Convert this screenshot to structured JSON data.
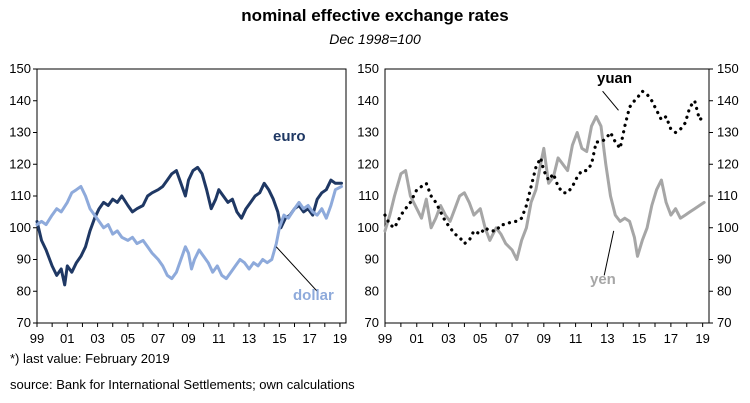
{
  "title": "nominal effective exchange rates",
  "subtitle": "Dec 1998=100",
  "footnote": "*) last value: February 2019",
  "source": "source: Bank for International Settlements; own calculations",
  "colors": {
    "euro": "#1f3864",
    "dollar": "#8eaadb",
    "yen": "#a6a6a6",
    "yuan": "#000000",
    "axis": "#000000"
  },
  "chart_data": [
    {
      "type": "line",
      "ylim": [
        70,
        150
      ],
      "yticks": [
        70,
        80,
        90,
        100,
        110,
        120,
        130,
        140,
        150
      ],
      "xlim": [
        1999,
        2019.4
      ],
      "xtick_labels": [
        "99",
        "01",
        "03",
        "05",
        "07",
        "09",
        "11",
        "13",
        "15",
        "17",
        "19"
      ],
      "series": [
        {
          "name": "euro",
          "style": "solid",
          "x": [
            1999.0,
            1999.3,
            1999.6,
            2000.0,
            2000.3,
            2000.6,
            2000.83,
            2001.0,
            2001.3,
            2001.6,
            2001.9,
            2002.2,
            2002.5,
            2002.8,
            2003.1,
            2003.4,
            2003.7,
            2004.0,
            2004.3,
            2004.6,
            2005.0,
            2005.3,
            2005.6,
            2006.0,
            2006.3,
            2006.6,
            2007.0,
            2007.3,
            2007.6,
            2007.9,
            2008.2,
            2008.5,
            2008.8,
            2009.0,
            2009.3,
            2009.6,
            2009.9,
            2010.2,
            2010.5,
            2010.8,
            2011.0,
            2011.3,
            2011.6,
            2011.9,
            2012.2,
            2012.5,
            2012.8,
            2013.1,
            2013.4,
            2013.7,
            2014.0,
            2014.3,
            2014.6,
            2014.9,
            2015.1,
            2015.4,
            2015.7,
            2016.0,
            2016.3,
            2016.6,
            2016.9,
            2017.2,
            2017.5,
            2017.8,
            2018.1,
            2018.4,
            2018.7,
            2019.1
          ],
          "y": [
            102,
            96,
            93,
            88,
            85,
            87,
            82,
            88,
            86,
            89,
            91,
            94,
            99,
            103,
            106,
            108,
            107,
            109,
            108,
            110,
            107,
            105,
            106,
            107,
            110,
            111,
            112,
            113,
            115,
            117,
            118,
            114,
            110,
            115,
            118,
            119,
            117,
            112,
            106,
            109,
            112,
            110,
            108,
            109,
            105,
            103,
            106,
            108,
            110,
            111,
            114,
            112,
            109,
            105,
            100,
            103,
            104,
            106,
            107,
            105,
            106,
            104,
            109,
            111,
            112,
            115,
            114,
            114
          ]
        },
        {
          "name": "dollar",
          "style": "solid",
          "x": [
            1999.0,
            1999.3,
            1999.6,
            2000.0,
            2000.3,
            2000.6,
            2001.0,
            2001.3,
            2001.6,
            2001.9,
            2002.2,
            2002.5,
            2002.8,
            2003.1,
            2003.4,
            2003.7,
            2004.0,
            2004.3,
            2004.6,
            2005.0,
            2005.3,
            2005.6,
            2006.0,
            2006.3,
            2006.6,
            2007.0,
            2007.3,
            2007.6,
            2007.9,
            2008.2,
            2008.5,
            2008.8,
            2009.0,
            2009.2,
            2009.4,
            2009.7,
            2010.0,
            2010.3,
            2010.6,
            2010.9,
            2011.2,
            2011.5,
            2011.8,
            2012.1,
            2012.4,
            2012.7,
            2013.0,
            2013.3,
            2013.6,
            2013.9,
            2014.2,
            2014.5,
            2014.8,
            2015.0,
            2015.3,
            2015.6,
            2016.0,
            2016.3,
            2016.6,
            2016.9,
            2017.2,
            2017.5,
            2017.8,
            2018.1,
            2018.4,
            2018.7,
            2019.1
          ],
          "y": [
            101,
            102,
            101,
            104,
            106,
            105,
            108,
            111,
            112,
            113,
            110,
            106,
            104,
            102,
            100,
            101,
            98,
            99,
            97,
            96,
            97,
            95,
            96,
            94,
            92,
            90,
            88,
            85,
            84,
            86,
            90,
            94,
            92,
            87,
            90,
            93,
            91,
            89,
            86,
            88,
            85,
            84,
            86,
            88,
            90,
            89,
            87,
            89,
            88,
            90,
            89,
            90,
            95,
            100,
            104,
            103,
            106,
            108,
            106,
            107,
            105,
            104,
            106,
            103,
            107,
            112,
            113
          ]
        },
        {
          "name": "",
          "style": "callout",
          "x": [
            2014.8,
            2017.5
          ],
          "y": [
            94,
            80
          ]
        }
      ]
    },
    {
      "type": "line",
      "ylim": [
        70,
        150
      ],
      "yticks": [
        70,
        80,
        90,
        100,
        110,
        120,
        130,
        140,
        150
      ],
      "xlim": [
        1999,
        2019.4
      ],
      "xtick_labels": [
        "99",
        "01",
        "03",
        "05",
        "07",
        "09",
        "11",
        "13",
        "15",
        "17",
        "19"
      ],
      "series": [
        {
          "name": "yen",
          "style": "solid",
          "x": [
            1999.0,
            1999.3,
            1999.6,
            2000.0,
            2000.3,
            2000.6,
            2001.0,
            2001.3,
            2001.6,
            2001.9,
            2002.2,
            2002.5,
            2002.8,
            2003.1,
            2003.4,
            2003.7,
            2004.0,
            2004.3,
            2004.6,
            2005.0,
            2005.3,
            2005.6,
            2006.0,
            2006.3,
            2006.6,
            2007.0,
            2007.3,
            2007.6,
            2007.9,
            2008.2,
            2008.5,
            2008.8,
            2009.0,
            2009.3,
            2009.6,
            2009.9,
            2010.2,
            2010.5,
            2010.8,
            2011.1,
            2011.4,
            2011.7,
            2012.0,
            2012.3,
            2012.6,
            2012.9,
            2013.2,
            2013.5,
            2013.8,
            2014.1,
            2014.4,
            2014.7,
            2014.9,
            2015.2,
            2015.5,
            2015.8,
            2016.1,
            2016.4,
            2016.7,
            2017.0,
            2017.3,
            2017.6,
            2017.9,
            2018.2,
            2018.5,
            2018.8,
            2019.1
          ],
          "y": [
            99,
            104,
            110,
            117,
            118,
            110,
            106,
            103,
            109,
            100,
            103,
            107,
            104,
            102,
            106,
            110,
            111,
            108,
            104,
            106,
            100,
            96,
            100,
            98,
            95,
            93,
            90,
            96,
            100,
            108,
            112,
            120,
            125,
            114,
            116,
            122,
            120,
            118,
            126,
            130,
            125,
            124,
            132,
            135,
            132,
            120,
            110,
            104,
            102,
            103,
            102,
            97,
            91,
            96,
            100,
            107,
            112,
            115,
            108,
            104,
            106,
            103,
            104,
            105,
            106,
            107,
            108
          ]
        },
        {
          "name": "yuan",
          "style": "dotted",
          "x": [
            1999.0,
            1999.3,
            1999.6,
            2000.0,
            2000.3,
            2000.6,
            2001.0,
            2001.3,
            2001.6,
            2001.9,
            2002.2,
            2002.5,
            2002.8,
            2003.1,
            2003.4,
            2003.7,
            2004.0,
            2004.3,
            2004.6,
            2005.0,
            2005.3,
            2005.6,
            2006.0,
            2006.3,
            2006.6,
            2007.0,
            2007.3,
            2007.6,
            2007.9,
            2008.2,
            2008.5,
            2008.8,
            2009.0,
            2009.3,
            2009.6,
            2009.9,
            2010.2,
            2010.5,
            2010.8,
            2011.1,
            2011.4,
            2011.7,
            2012.0,
            2012.3,
            2012.6,
            2012.9,
            2013.2,
            2013.5,
            2013.8,
            2014.1,
            2014.4,
            2014.7,
            2014.9,
            2015.2,
            2015.5,
            2015.8,
            2016.1,
            2016.4,
            2016.7,
            2017.0,
            2017.3,
            2017.6,
            2017.9,
            2018.2,
            2018.5,
            2018.8,
            2019.1
          ],
          "y": [
            104,
            101,
            100,
            104,
            106,
            108,
            112,
            113,
            114,
            110,
            108,
            105,
            102,
            100,
            98,
            97,
            95,
            96,
            99,
            98,
            100,
            99,
            99,
            101,
            101,
            102,
            102,
            103,
            107,
            113,
            119,
            122,
            118,
            115,
            117,
            113,
            111,
            111,
            113,
            116,
            118,
            118,
            120,
            127,
            127,
            128,
            130,
            127,
            125,
            132,
            138,
            140,
            141,
            143,
            142,
            140,
            137,
            134,
            135,
            131,
            130,
            131,
            133,
            138,
            140,
            134,
            135
          ]
        },
        {
          "name": "",
          "style": "callout",
          "x": [
            2013.7,
            2012.7
          ],
          "y": [
            137,
            143
          ]
        },
        {
          "name": "",
          "style": "callout",
          "x": [
            2013.4,
            2012.8
          ],
          "y": [
            99,
            85
          ]
        }
      ]
    }
  ]
}
